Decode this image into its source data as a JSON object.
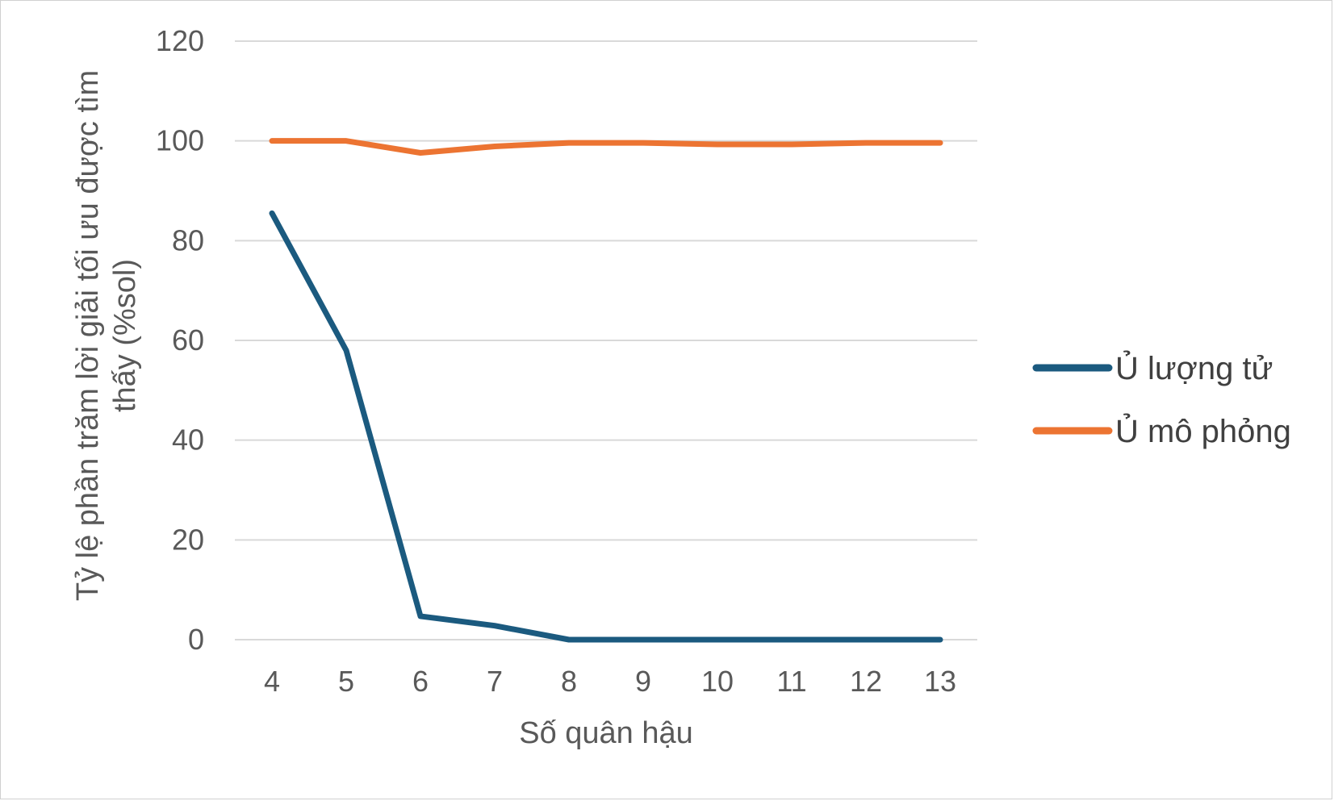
{
  "chart_data": {
    "type": "line",
    "title": "",
    "xlabel": "Số quân hậu",
    "ylabel_lines": [
      "Tỷ lệ phần trăm lời giải tối ưu được tìm",
      "thấy (%sol)"
    ],
    "categories": [
      "4",
      "5",
      "6",
      "7",
      "8",
      "9",
      "10",
      "11",
      "12",
      "13"
    ],
    "ylim": [
      0,
      120
    ],
    "yticks": [
      0,
      20,
      40,
      60,
      80,
      100,
      120
    ],
    "grid": true,
    "legend_position": "right",
    "series": [
      {
        "name": "Ủ lượng tử",
        "color": "#1b5a7f",
        "values": [
          85.5,
          58,
          4.7,
          2.8,
          0,
          0,
          0,
          0,
          0,
          0
        ]
      },
      {
        "name": "Ủ mô phỏng",
        "color": "#ec7432",
        "values": [
          100,
          100,
          97.6,
          98.9,
          99.6,
          99.6,
          99.3,
          99.3,
          99.6,
          99.6
        ]
      }
    ]
  }
}
